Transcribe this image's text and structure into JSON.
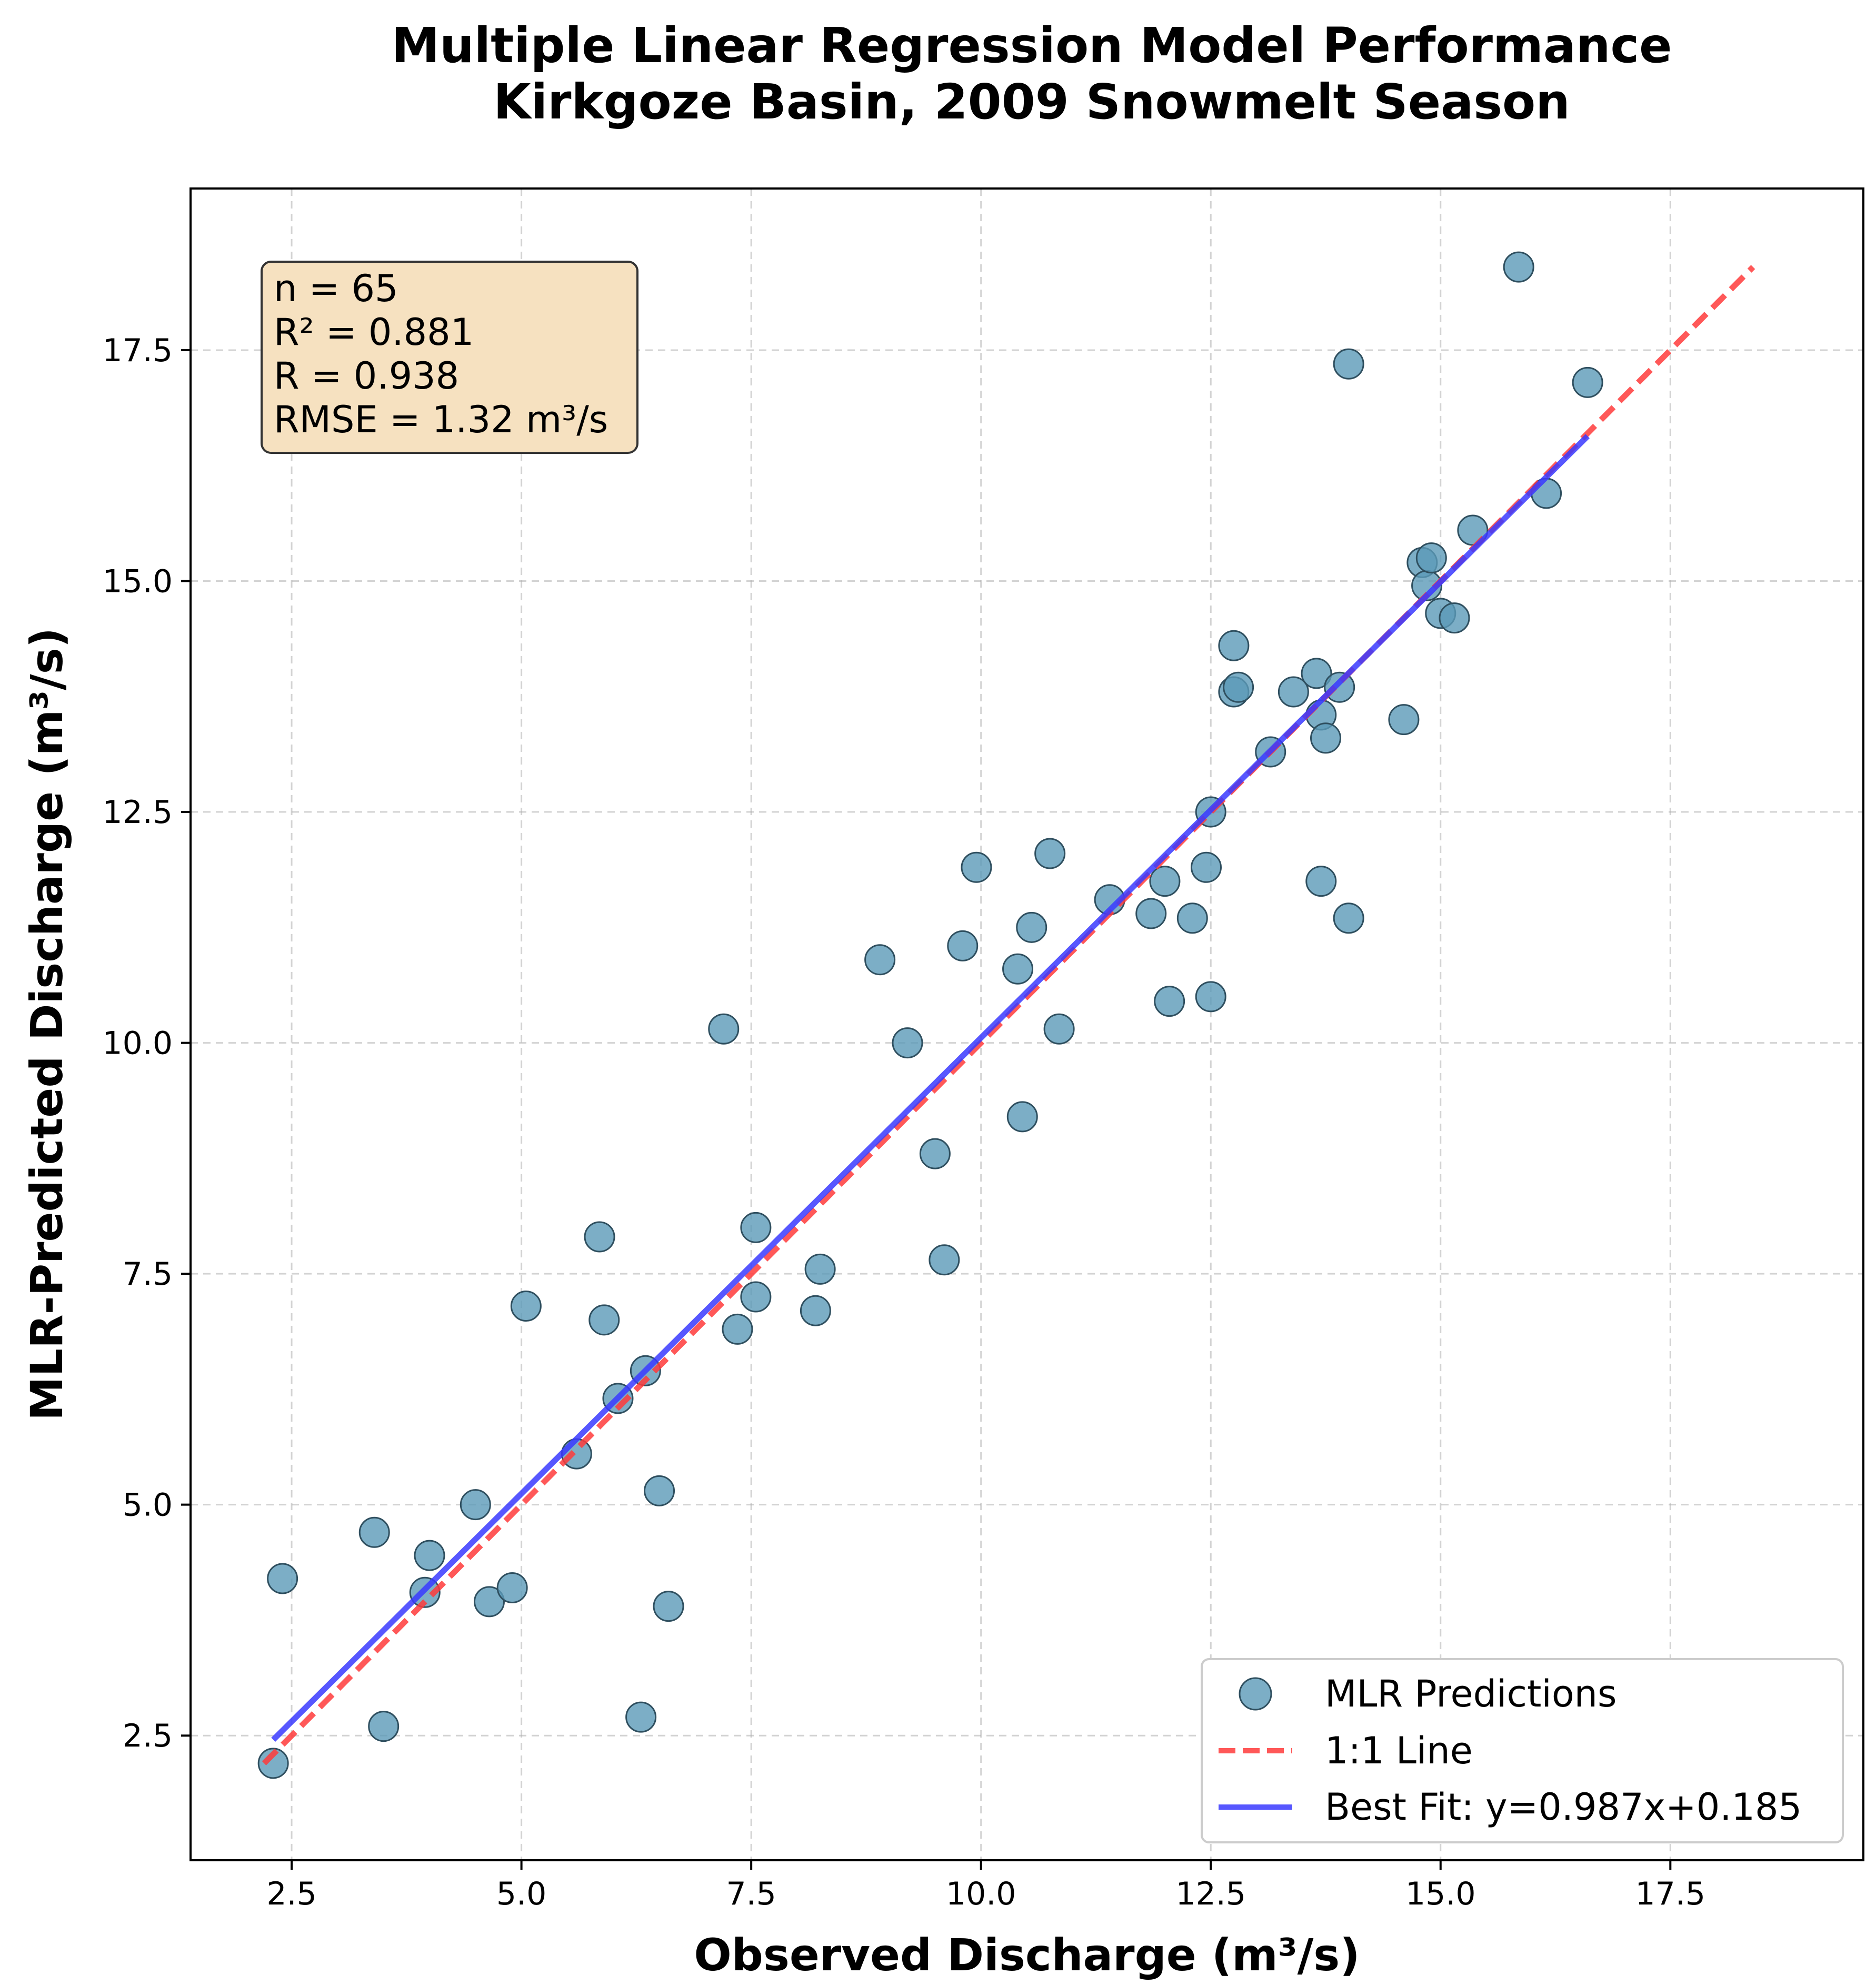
{
  "chart_data": {
    "type": "scatter",
    "title_line1": "Multiple Linear Regression Model Performance",
    "title_line2": "Kirkgoze Basin, 2009 Snowmelt Season",
    "xlabel": "Observed Discharge (m³/s)",
    "ylabel": "MLR-Predicted Discharge (m³/s)",
    "xlim": [
      1.4,
      19.6
    ],
    "ylim": [
      1.15,
      19.25
    ],
    "xticks": [
      2.5,
      5.0,
      7.5,
      10.0,
      12.5,
      15.0,
      17.5
    ],
    "yticks": [
      2.5,
      5.0,
      7.5,
      10.0,
      12.5,
      15.0,
      17.5
    ],
    "xtick_labels": [
      "2.5",
      "5.0",
      "7.5",
      "10.0",
      "12.5",
      "15.0",
      "17.5"
    ],
    "ytick_labels": [
      "2.5",
      "5.0",
      "7.5",
      "10.0",
      "12.5",
      "15.0",
      "17.5"
    ],
    "grid": true,
    "stats": {
      "n": "n = 65",
      "r2": "R² = 0.881",
      "r": "R = 0.938",
      "rmse": "RMSE = 1.32 m³/s"
    },
    "legend_position": "bottom-right",
    "series": [
      {
        "name": "MLR Predictions",
        "kind": "scatter",
        "color": "#5b9ab8",
        "points": [
          [
            2.3,
            2.2
          ],
          [
            2.4,
            4.2
          ],
          [
            3.4,
            4.7
          ],
          [
            3.5,
            2.6
          ],
          [
            3.95,
            4.05
          ],
          [
            4.0,
            4.45
          ],
          [
            4.5,
            5.0
          ],
          [
            4.65,
            3.95
          ],
          [
            4.9,
            4.1
          ],
          [
            5.05,
            7.15
          ],
          [
            5.6,
            5.55
          ],
          [
            5.85,
            7.9
          ],
          [
            5.9,
            7.0
          ],
          [
            6.05,
            6.15
          ],
          [
            6.3,
            2.7
          ],
          [
            6.35,
            6.45
          ],
          [
            6.5,
            5.15
          ],
          [
            6.6,
            3.9
          ],
          [
            7.2,
            10.15
          ],
          [
            7.35,
            6.9
          ],
          [
            7.55,
            8.0
          ],
          [
            7.55,
            7.25
          ],
          [
            8.2,
            7.1
          ],
          [
            8.25,
            7.55
          ],
          [
            8.9,
            10.9
          ],
          [
            9.2,
            10.0
          ],
          [
            9.5,
            8.8
          ],
          [
            9.6,
            7.65
          ],
          [
            9.8,
            11.05
          ],
          [
            9.95,
            11.9
          ],
          [
            10.4,
            10.8
          ],
          [
            10.45,
            9.2
          ],
          [
            10.55,
            11.25
          ],
          [
            10.75,
            12.05
          ],
          [
            10.85,
            10.15
          ],
          [
            11.4,
            11.55
          ],
          [
            11.85,
            11.4
          ],
          [
            12.0,
            11.75
          ],
          [
            12.05,
            10.45
          ],
          [
            12.3,
            11.35
          ],
          [
            12.45,
            11.9
          ],
          [
            12.5,
            12.5
          ],
          [
            12.5,
            10.5
          ],
          [
            12.75,
            13.8
          ],
          [
            12.75,
            14.3
          ],
          [
            12.8,
            13.85
          ],
          [
            13.15,
            13.15
          ],
          [
            13.4,
            13.8
          ],
          [
            13.65,
            14.0
          ],
          [
            13.7,
            13.55
          ],
          [
            13.7,
            11.75
          ],
          [
            13.75,
            13.3
          ],
          [
            13.9,
            13.85
          ],
          [
            14.0,
            17.35
          ],
          [
            14.0,
            11.35
          ],
          [
            14.6,
            13.5
          ],
          [
            14.8,
            15.2
          ],
          [
            14.85,
            14.95
          ],
          [
            14.9,
            15.25
          ],
          [
            15.0,
            14.65
          ],
          [
            15.15,
            14.6
          ],
          [
            15.35,
            15.55
          ],
          [
            15.85,
            18.4
          ],
          [
            16.15,
            15.95
          ],
          [
            16.6,
            17.15
          ]
        ]
      },
      {
        "name": "1:1 Line",
        "kind": "line",
        "color": "#ff3b3b",
        "style": "dashed",
        "x": [
          2.2,
          18.4
        ],
        "y": [
          2.2,
          18.4
        ]
      },
      {
        "name": "Best Fit: y=0.987x+0.185",
        "kind": "line",
        "color": "#3a3aff",
        "style": "solid",
        "x": [
          2.3,
          16.6
        ],
        "y": [
          2.455,
          16.569
        ]
      }
    ]
  }
}
